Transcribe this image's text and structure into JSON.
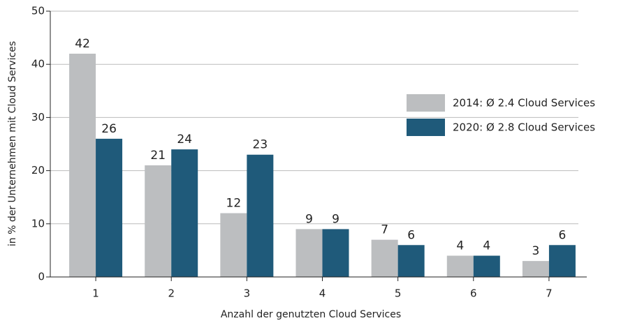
{
  "chart_data": {
    "type": "bar",
    "x_label": "Anzahl der genutzten Cloud Services",
    "y_label": "in % der Unternehmen mit Cloud Services",
    "categories": [
      "1",
      "2",
      "3",
      "4",
      "5",
      "6",
      "7"
    ],
    "series": [
      {
        "name": "2014: Ø 2.4 Cloud Services",
        "color": "#bcbec0",
        "values": [
          42,
          21,
          12,
          9,
          7,
          4,
          3
        ]
      },
      {
        "name": "2020: Ø 2.8 Cloud Services",
        "color": "#1f5a7a",
        "values": [
          26,
          24,
          23,
          9,
          6,
          4,
          6
        ]
      }
    ],
    "ylim": [
      0,
      50
    ],
    "yticks": [
      0,
      10,
      20,
      30,
      40,
      50
    ],
    "grid": true,
    "legend": "right"
  }
}
